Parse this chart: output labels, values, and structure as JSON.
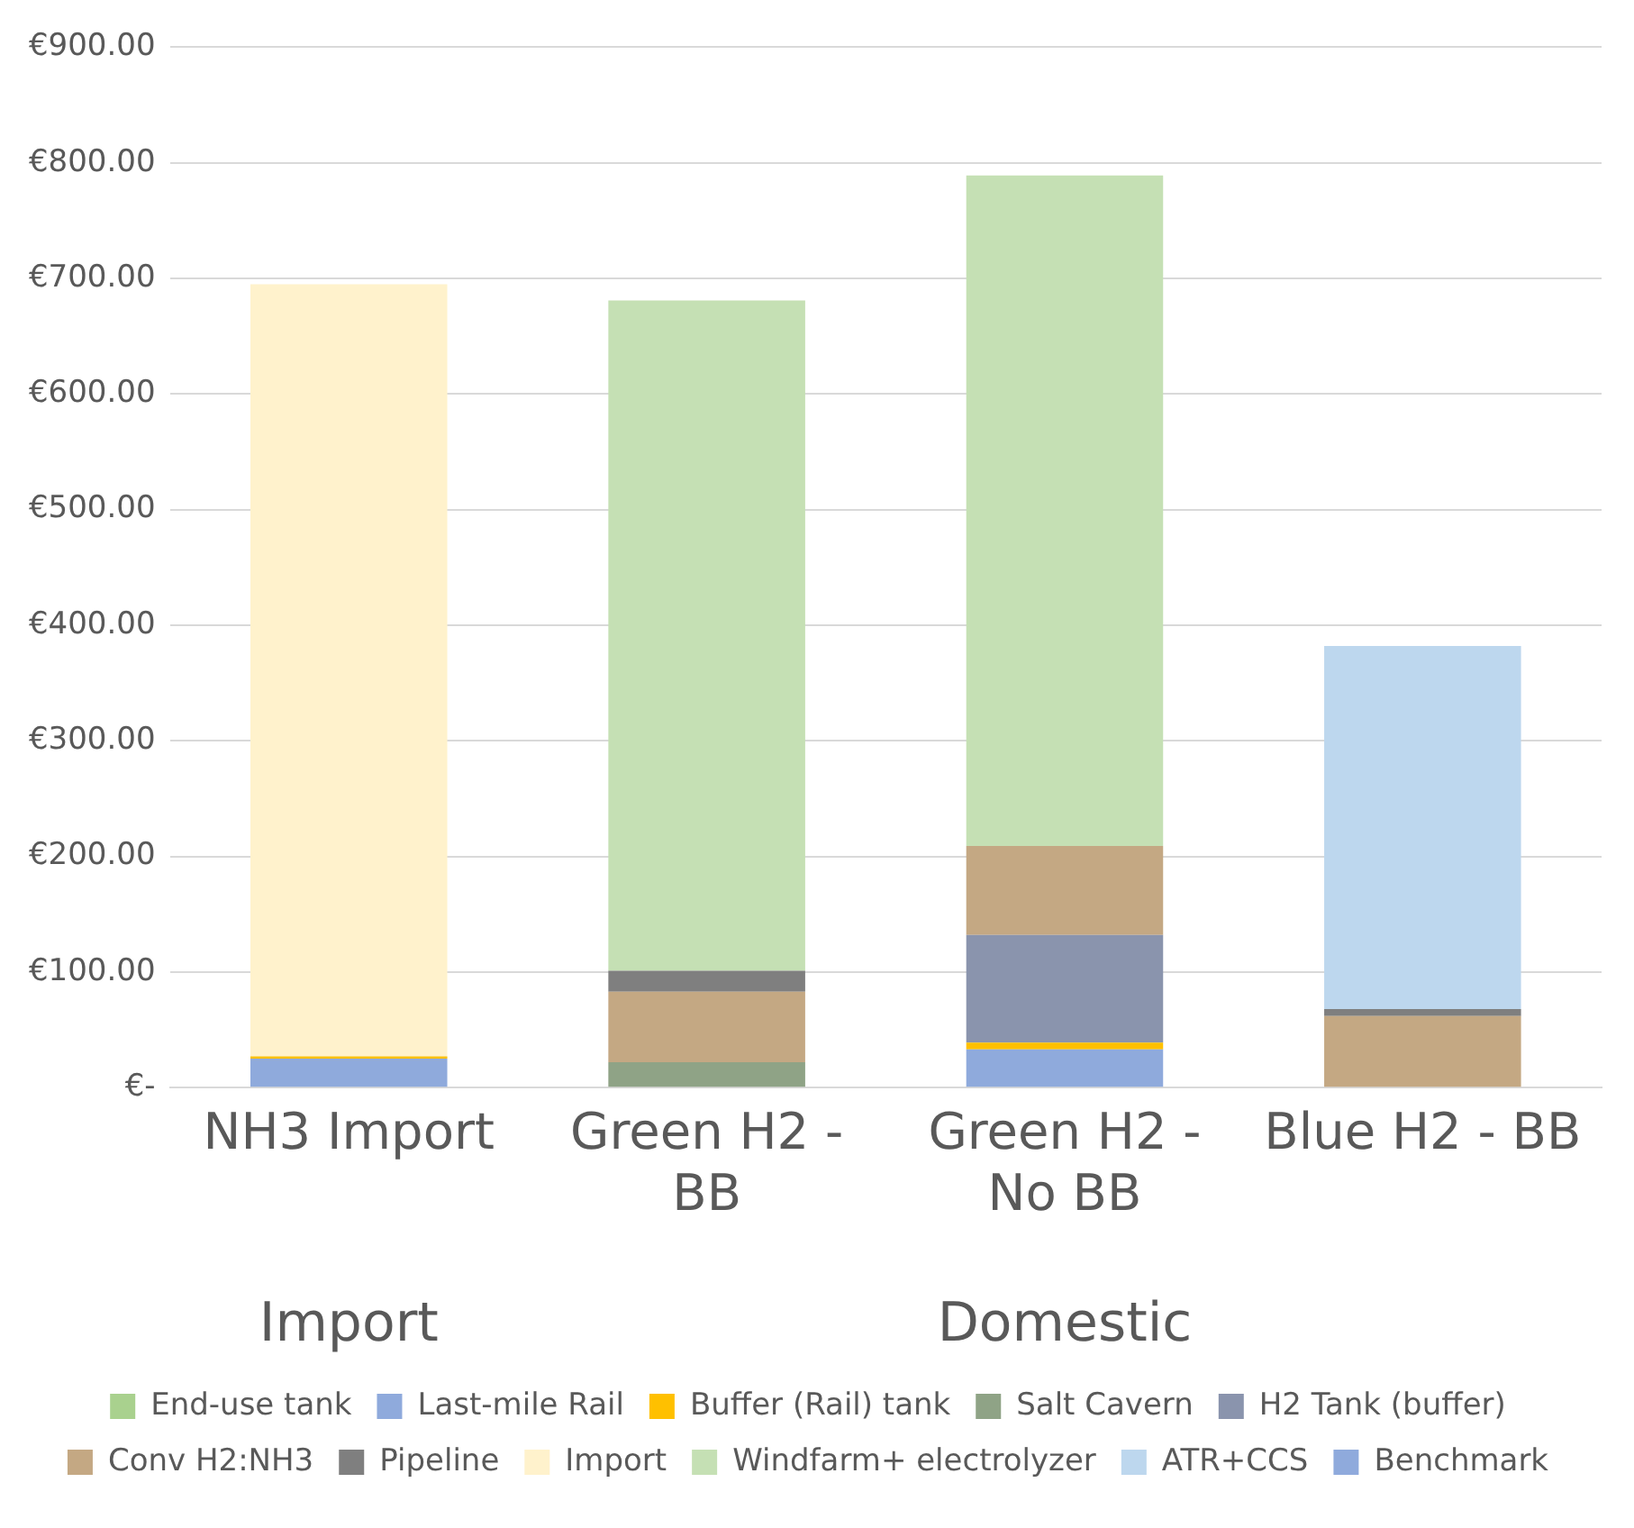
{
  "chart_data": {
    "type": "bar",
    "stacked": true,
    "categories": [
      "NH3 Import",
      "Green H2 - BB",
      "Green H2 - No BB",
      "Blue H2 - BB"
    ],
    "series": [
      {
        "name": "End-use tank",
        "color": "#a9d18e",
        "values": [
          null,
          null,
          null,
          null
        ]
      },
      {
        "name": "Last-mile Rail",
        "color": "#8faadc",
        "values": [
          25,
          null,
          33,
          null
        ]
      },
      {
        "name": "Buffer (Rail) tank",
        "color": "#ffc000",
        "values": [
          2,
          null,
          6,
          null
        ]
      },
      {
        "name": "Salt Cavern",
        "color": "#8fa386",
        "values": [
          null,
          22,
          null,
          null
        ]
      },
      {
        "name": "H2 Tank (buffer)",
        "color": "#8a94ad",
        "values": [
          null,
          null,
          93,
          null
        ]
      },
      {
        "name": "Conv H2:NH3",
        "color": "#c4a883",
        "values": [
          null,
          61,
          77,
          62
        ]
      },
      {
        "name": "Pipeline",
        "color": "#7f7f7f",
        "values": [
          null,
          18,
          null,
          6
        ]
      },
      {
        "name": "Import",
        "color": "#fff2cc",
        "values": [
          668,
          null,
          null,
          null
        ]
      },
      {
        "name": "Windfarm+ electrolyzer",
        "color": "#c5e0b4",
        "values": [
          null,
          580,
          580,
          null
        ]
      },
      {
        "name": "ATR+CCS",
        "color": "#bdd7ee",
        "values": [
          null,
          null,
          null,
          314
        ]
      },
      {
        "name": "Benchmark",
        "color": "#8faadc",
        "values": [
          null,
          null,
          null,
          null
        ]
      }
    ],
    "ylim": [
      0,
      900
    ],
    "yticks": [
      {
        "value": 0,
        "label": "€-"
      },
      {
        "value": 100,
        "label": "€100.00"
      },
      {
        "value": 200,
        "label": "€200.00"
      },
      {
        "value": 300,
        "label": "€300.00"
      },
      {
        "value": 400,
        "label": "€400.00"
      },
      {
        "value": 500,
        "label": "€500.00"
      },
      {
        "value": 600,
        "label": "€600.00"
      },
      {
        "value": 700,
        "label": "€700.00"
      },
      {
        "value": 800,
        "label": "€800.00"
      },
      {
        "value": 900,
        "label": "€900.00"
      }
    ],
    "grid": "y",
    "legend": "bottom",
    "annotations": [
      "Import",
      "Domestic"
    ]
  }
}
